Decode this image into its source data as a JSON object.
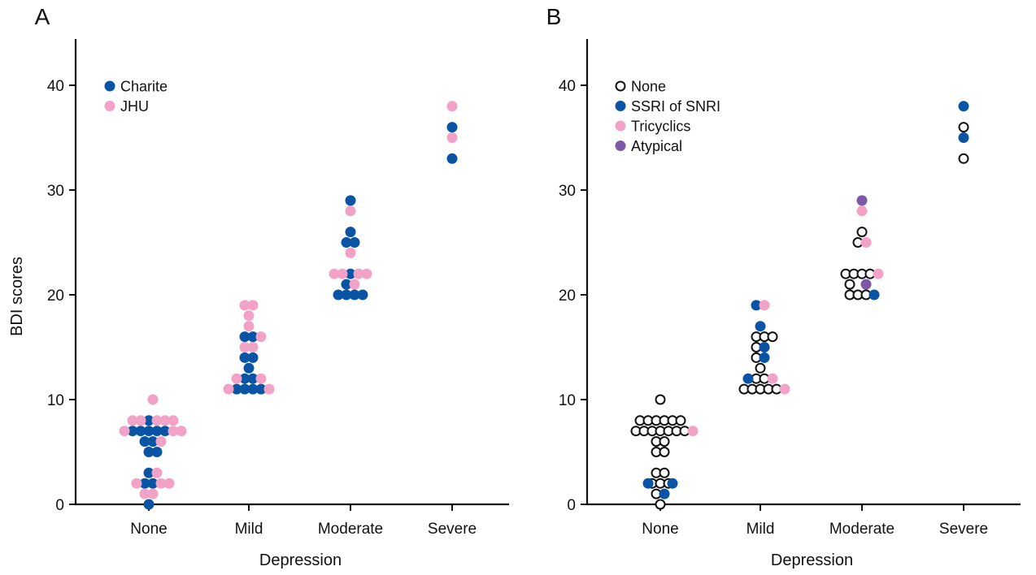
{
  "figure": {
    "ylabel": "BDI scores",
    "panels": [
      {
        "id": "panel-a",
        "letter": "A",
        "xlabel": "Depression",
        "legend": [
          {
            "label": "Charite",
            "color": "#0a54a5",
            "style": "filled"
          },
          {
            "label": "JHU",
            "color": "#f2a1c7",
            "style": "filled"
          }
        ]
      },
      {
        "id": "panel-b",
        "letter": "B",
        "xlabel": "Depression",
        "legend": [
          {
            "label": "None",
            "color": "#111111",
            "style": "open"
          },
          {
            "label": "SSRI of SNRI",
            "color": "#0a54a5",
            "style": "filled"
          },
          {
            "label": "Tricyclics",
            "color": "#f2a1c7",
            "style": "filled"
          },
          {
            "label": "Atypical",
            "color": "#7e58a8",
            "style": "filled"
          }
        ]
      }
    ]
  },
  "chart_data": [
    {
      "type": "scatter",
      "title": "A",
      "xlabel": "Depression",
      "ylabel": "BDI scores",
      "categories": [
        "None",
        "Mild",
        "Moderate",
        "Severe"
      ],
      "ylim": [
        0,
        44
      ],
      "yticks": [
        0,
        10,
        20,
        30,
        40
      ],
      "grid": false,
      "legend_position": "top-left",
      "series": [
        {
          "name": "Charite",
          "color": "#0a54a5",
          "style": "filled",
          "points": [
            {
              "category": "None",
              "offset": -2,
              "y": 7
            },
            {
              "category": "None",
              "offset": -1,
              "y": 7
            },
            {
              "category": "None",
              "offset": 0,
              "y": 7
            },
            {
              "category": "None",
              "offset": 1,
              "y": 7
            },
            {
              "category": "None",
              "offset": 2,
              "y": 7
            },
            {
              "category": "None",
              "offset": 0,
              "y": 8
            },
            {
              "category": "None",
              "offset": -0.5,
              "y": 6
            },
            {
              "category": "None",
              "offset": 0.5,
              "y": 6
            },
            {
              "category": "None",
              "offset": 0,
              "y": 5
            },
            {
              "category": "None",
              "offset": 1,
              "y": 5
            },
            {
              "category": "None",
              "offset": 0,
              "y": 3
            },
            {
              "category": "None",
              "offset": -0.5,
              "y": 2
            },
            {
              "category": "None",
              "offset": 0.5,
              "y": 2
            },
            {
              "category": "None",
              "offset": 0,
              "y": 0
            },
            {
              "category": "Mild",
              "offset": -0.5,
              "y": 16
            },
            {
              "category": "Mild",
              "offset": 0.5,
              "y": 16
            },
            {
              "category": "Mild",
              "offset": -0.5,
              "y": 14
            },
            {
              "category": "Mild",
              "offset": 0.5,
              "y": 14
            },
            {
              "category": "Mild",
              "offset": 0,
              "y": 13
            },
            {
              "category": "Mild",
              "offset": -0.5,
              "y": 12
            },
            {
              "category": "Mild",
              "offset": 0.5,
              "y": 12
            },
            {
              "category": "Mild",
              "offset": -1.5,
              "y": 11
            },
            {
              "category": "Mild",
              "offset": -0.5,
              "y": 11
            },
            {
              "category": "Mild",
              "offset": 0.5,
              "y": 11
            },
            {
              "category": "Mild",
              "offset": 1.5,
              "y": 11
            },
            {
              "category": "Moderate",
              "offset": 0,
              "y": 29
            },
            {
              "category": "Moderate",
              "offset": 0,
              "y": 26
            },
            {
              "category": "Moderate",
              "offset": -0.5,
              "y": 25
            },
            {
              "category": "Moderate",
              "offset": 0.5,
              "y": 25
            },
            {
              "category": "Moderate",
              "offset": 0,
              "y": 22
            },
            {
              "category": "Moderate",
              "offset": -0.5,
              "y": 21
            },
            {
              "category": "Moderate",
              "offset": -1.5,
              "y": 20
            },
            {
              "category": "Moderate",
              "offset": -0.5,
              "y": 20
            },
            {
              "category": "Moderate",
              "offset": 0.5,
              "y": 20
            },
            {
              "category": "Moderate",
              "offset": 1.5,
              "y": 20
            },
            {
              "category": "Severe",
              "offset": 0,
              "y": 36
            },
            {
              "category": "Severe",
              "offset": 0,
              "y": 33
            }
          ]
        },
        {
          "name": "JHU",
          "color": "#f2a1c7",
          "style": "filled",
          "points": [
            {
              "category": "None",
              "offset": 0.5,
              "y": 10
            },
            {
              "category": "None",
              "offset": -2,
              "y": 8
            },
            {
              "category": "None",
              "offset": -1,
              "y": 8
            },
            {
              "category": "None",
              "offset": 1,
              "y": 8
            },
            {
              "category": "None",
              "offset": 2,
              "y": 8
            },
            {
              "category": "None",
              "offset": 3,
              "y": 8
            },
            {
              "category": "None",
              "offset": -3,
              "y": 7
            },
            {
              "category": "None",
              "offset": 3,
              "y": 7
            },
            {
              "category": "None",
              "offset": 4,
              "y": 7
            },
            {
              "category": "None",
              "offset": 1.5,
              "y": 6
            },
            {
              "category": "None",
              "offset": 1,
              "y": 3
            },
            {
              "category": "None",
              "offset": -1.5,
              "y": 2
            },
            {
              "category": "None",
              "offset": 1.5,
              "y": 2
            },
            {
              "category": "None",
              "offset": 2.5,
              "y": 2
            },
            {
              "category": "None",
              "offset": -0.5,
              "y": 1
            },
            {
              "category": "None",
              "offset": 0.5,
              "y": 1
            },
            {
              "category": "Mild",
              "offset": -0.5,
              "y": 19
            },
            {
              "category": "Mild",
              "offset": 0.5,
              "y": 19
            },
            {
              "category": "Mild",
              "offset": 0,
              "y": 18
            },
            {
              "category": "Mild",
              "offset": 0,
              "y": 17
            },
            {
              "category": "Mild",
              "offset": 1.5,
              "y": 16
            },
            {
              "category": "Mild",
              "offset": -0.5,
              "y": 15
            },
            {
              "category": "Mild",
              "offset": 0.5,
              "y": 15
            },
            {
              "category": "Mild",
              "offset": -1.5,
              "y": 12
            },
            {
              "category": "Mild",
              "offset": 1.5,
              "y": 12
            },
            {
              "category": "Mild",
              "offset": -2.5,
              "y": 11
            },
            {
              "category": "Mild",
              "offset": 2.5,
              "y": 11
            },
            {
              "category": "Moderate",
              "offset": 0,
              "y": 28
            },
            {
              "category": "Moderate",
              "offset": 0,
              "y": 24
            },
            {
              "category": "Moderate",
              "offset": -2,
              "y": 22
            },
            {
              "category": "Moderate",
              "offset": -1,
              "y": 22
            },
            {
              "category": "Moderate",
              "offset": 1,
              "y": 22
            },
            {
              "category": "Moderate",
              "offset": 2,
              "y": 22
            },
            {
              "category": "Moderate",
              "offset": 0.5,
              "y": 21
            },
            {
              "category": "Severe",
              "offset": 0,
              "y": 38
            },
            {
              "category": "Severe",
              "offset": 0,
              "y": 35
            }
          ]
        }
      ]
    },
    {
      "type": "scatter",
      "title": "B",
      "xlabel": "Depression",
      "ylabel": "",
      "categories": [
        "None",
        "Mild",
        "Moderate",
        "Severe"
      ],
      "ylim": [
        0,
        44
      ],
      "yticks": [
        0,
        10,
        20,
        30,
        40
      ],
      "grid": false,
      "legend_position": "top-left",
      "series": [
        {
          "name": "None",
          "color": "#111111",
          "style": "open",
          "points": [
            {
              "category": "None",
              "offset": 0,
              "y": 10
            },
            {
              "category": "None",
              "offset": -2.5,
              "y": 8
            },
            {
              "category": "None",
              "offset": -1.5,
              "y": 8
            },
            {
              "category": "None",
              "offset": -0.5,
              "y": 8
            },
            {
              "category": "None",
              "offset": 0.5,
              "y": 8
            },
            {
              "category": "None",
              "offset": 1.5,
              "y": 8
            },
            {
              "category": "None",
              "offset": 2.5,
              "y": 8
            },
            {
              "category": "None",
              "offset": -3,
              "y": 7
            },
            {
              "category": "None",
              "offset": -2,
              "y": 7
            },
            {
              "category": "None",
              "offset": -1,
              "y": 7
            },
            {
              "category": "None",
              "offset": 0,
              "y": 7
            },
            {
              "category": "None",
              "offset": 1,
              "y": 7
            },
            {
              "category": "None",
              "offset": 2,
              "y": 7
            },
            {
              "category": "None",
              "offset": 3,
              "y": 7
            },
            {
              "category": "None",
              "offset": -0.5,
              "y": 6
            },
            {
              "category": "None",
              "offset": 0.5,
              "y": 6
            },
            {
              "category": "None",
              "offset": -0.5,
              "y": 5
            },
            {
              "category": "None",
              "offset": 0.5,
              "y": 5
            },
            {
              "category": "None",
              "offset": -0.5,
              "y": 3
            },
            {
              "category": "None",
              "offset": 0.5,
              "y": 3
            },
            {
              "category": "None",
              "offset": -1,
              "y": 2
            },
            {
              "category": "None",
              "offset": 0,
              "y": 2
            },
            {
              "category": "None",
              "offset": 1,
              "y": 2
            },
            {
              "category": "None",
              "offset": -0.5,
              "y": 1
            },
            {
              "category": "None",
              "offset": 0,
              "y": 0
            },
            {
              "category": "Mild",
              "offset": -0.5,
              "y": 16
            },
            {
              "category": "Mild",
              "offset": 0.5,
              "y": 16
            },
            {
              "category": "Mild",
              "offset": 1.5,
              "y": 16
            },
            {
              "category": "Mild",
              "offset": -0.5,
              "y": 15
            },
            {
              "category": "Mild",
              "offset": -0.5,
              "y": 14
            },
            {
              "category": "Mild",
              "offset": 0,
              "y": 13
            },
            {
              "category": "Mild",
              "offset": -0.5,
              "y": 12
            },
            {
              "category": "Mild",
              "offset": 0.5,
              "y": 12
            },
            {
              "category": "Mild",
              "offset": -2,
              "y": 11
            },
            {
              "category": "Mild",
              "offset": -1,
              "y": 11
            },
            {
              "category": "Mild",
              "offset": 0,
              "y": 11
            },
            {
              "category": "Mild",
              "offset": 1,
              "y": 11
            },
            {
              "category": "Mild",
              "offset": 2,
              "y": 11
            },
            {
              "category": "Moderate",
              "offset": 0,
              "y": 26
            },
            {
              "category": "Moderate",
              "offset": -0.5,
              "y": 25
            },
            {
              "category": "Moderate",
              "offset": -2,
              "y": 22
            },
            {
              "category": "Moderate",
              "offset": -1,
              "y": 22
            },
            {
              "category": "Moderate",
              "offset": 0,
              "y": 22
            },
            {
              "category": "Moderate",
              "offset": 1,
              "y": 22
            },
            {
              "category": "Moderate",
              "offset": -1.5,
              "y": 21
            },
            {
              "category": "Moderate",
              "offset": -1.5,
              "y": 20
            },
            {
              "category": "Moderate",
              "offset": -0.5,
              "y": 20
            },
            {
              "category": "Moderate",
              "offset": 0.5,
              "y": 20
            },
            {
              "category": "Severe",
              "offset": 0,
              "y": 36
            },
            {
              "category": "Severe",
              "offset": 0,
              "y": 33
            }
          ]
        },
        {
          "name": "SSRI of SNRI",
          "color": "#0a54a5",
          "style": "filled",
          "points": [
            {
              "category": "None",
              "offset": -1.5,
              "y": 2
            },
            {
              "category": "None",
              "offset": 1.5,
              "y": 2
            },
            {
              "category": "None",
              "offset": 0.5,
              "y": 1
            },
            {
              "category": "Mild",
              "offset": -0.5,
              "y": 19
            },
            {
              "category": "Mild",
              "offset": 0,
              "y": 17
            },
            {
              "category": "Mild",
              "offset": 0.5,
              "y": 15
            },
            {
              "category": "Mild",
              "offset": 0.5,
              "y": 14
            },
            {
              "category": "Mild",
              "offset": -1.5,
              "y": 12
            },
            {
              "category": "Moderate",
              "offset": 1.5,
              "y": 20
            },
            {
              "category": "Severe",
              "offset": 0,
              "y": 38
            },
            {
              "category": "Severe",
              "offset": 0,
              "y": 35
            }
          ]
        },
        {
          "name": "Tricyclics",
          "color": "#f2a1c7",
          "style": "filled",
          "points": [
            {
              "category": "None",
              "offset": 4,
              "y": 7
            },
            {
              "category": "Mild",
              "offset": 0.5,
              "y": 19
            },
            {
              "category": "Mild",
              "offset": 1.5,
              "y": 12
            },
            {
              "category": "Mild",
              "offset": 3,
              "y": 11
            },
            {
              "category": "Moderate",
              "offset": 0,
              "y": 28
            },
            {
              "category": "Moderate",
              "offset": 0.5,
              "y": 25
            },
            {
              "category": "Moderate",
              "offset": 2,
              "y": 22
            }
          ]
        },
        {
          "name": "Atypical",
          "color": "#7e58a8",
          "style": "filled",
          "points": [
            {
              "category": "Moderate",
              "offset": 0,
              "y": 29
            },
            {
              "category": "Moderate",
              "offset": 0.5,
              "y": 21
            }
          ]
        }
      ]
    }
  ]
}
